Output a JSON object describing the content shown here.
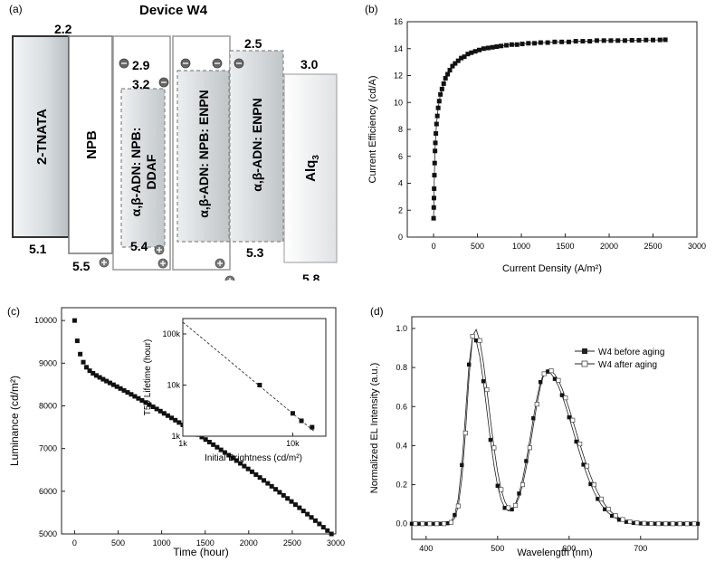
{
  "figure": {
    "a": {
      "panel_label": "(a)",
      "title": "Device W4",
      "layers": [
        {
          "name": "2-TNATA",
          "lumo": "2.2",
          "homo": "5.1"
        },
        {
          "name": "NPB",
          "lumo": "",
          "homo": "5.5"
        },
        {
          "name": "α,β-ADN: NPB: DDAF",
          "lumo": "2.9",
          "homo": "5.4",
          "lumo2": "3.2"
        },
        {
          "name": "α,β-ADN: NPB: ENPN",
          "lumo": "2.5",
          "homo": ""
        },
        {
          "name": "α,β-ADN: ENPN",
          "lumo": "",
          "homo": "5.3"
        },
        {
          "name": "Alq",
          "sub": "3",
          "lumo": "3.0",
          "homo": "5.8"
        }
      ],
      "labels": {
        "v22": "2.2",
        "v29": "2.9",
        "v32": "3.2",
        "v25": "2.5",
        "v30": "3.0",
        "v51": "5.1",
        "v55": "5.5",
        "v54": "5.4",
        "v53": "5.3",
        "v58": "5.8",
        "l_tnata": "2-TNATA",
        "l_npb": "NPB",
        "l_ddaf_1": "α,β-ADN: NPB:",
        "l_ddaf_2": "DDAF",
        "l_enpn1": "α,β-ADN: NPB: ENPN",
        "l_enpn2": "α,β-ADN: ENPN",
        "l_alq": "Alq",
        "l_alq_sub": "3"
      }
    },
    "b": {
      "panel_label": "(b)"
    },
    "c": {
      "panel_label": "(c)"
    },
    "d": {
      "panel_label": "(d)"
    }
  },
  "chart_data": [
    {
      "id": "b",
      "type": "scatter",
      "title": "",
      "xlabel": "Current Density (A/m²)",
      "ylabel": "Current Efficiency (cd/A)",
      "xlim": [
        -300,
        3000
      ],
      "ylim": [
        0,
        16
      ],
      "xticks": [
        "0",
        "500",
        "1000",
        "1500",
        "2000",
        "2500",
        "3000"
      ],
      "yticks": [
        "0",
        "2",
        "4",
        "6",
        "8",
        "10",
        "12",
        "14",
        "16"
      ],
      "series": [
        {
          "marker": "filled-square",
          "x": [
            0,
            2,
            4,
            6,
            9,
            12,
            16,
            20,
            26,
            33,
            42,
            52,
            64,
            78,
            95,
            115,
            135,
            160,
            185,
            215,
            245,
            280,
            315,
            350,
            390,
            430,
            475,
            520,
            570,
            620,
            670,
            720,
            770,
            830,
            890,
            950,
            1010,
            1080,
            1150,
            1220,
            1300,
            1380,
            1460,
            1540,
            1620,
            1700,
            1780,
            1860,
            1940,
            2020,
            2100,
            2180,
            2260,
            2340,
            2420,
            2500,
            2580,
            2640
          ],
          "y": [
            1.4,
            2.2,
            2.9,
            3.6,
            4.6,
            5.5,
            6.4,
            7.0,
            7.7,
            8.4,
            9.0,
            9.6,
            10.1,
            10.6,
            11.0,
            11.4,
            11.8,
            12.1,
            12.4,
            12.7,
            12.9,
            13.1,
            13.3,
            13.4,
            13.6,
            13.7,
            13.8,
            13.9,
            14.0,
            14.05,
            14.1,
            14.15,
            14.2,
            14.25,
            14.3,
            14.3,
            14.35,
            14.4,
            14.4,
            14.45,
            14.45,
            14.5,
            14.5,
            14.5,
            14.55,
            14.55,
            14.55,
            14.6,
            14.6,
            14.6,
            14.6,
            14.6,
            14.62,
            14.62,
            14.64,
            14.64,
            14.65,
            14.66
          ]
        }
      ]
    },
    {
      "id": "c",
      "type": "scatter",
      "title": "",
      "xlabel": "Time (hour)",
      "ylabel": "Luminance (cd/m²)",
      "xlim": [
        -150,
        3000
      ],
      "ylim": [
        5000,
        10300
      ],
      "xticks": [
        "0",
        "500",
        "1000",
        "1500",
        "2000",
        "2500",
        "3000"
      ],
      "yticks": [
        "5000",
        "6000",
        "7000",
        "8000",
        "9000",
        "10000"
      ],
      "series": [
        {
          "marker": "filled-square",
          "decay": {
            "start": 10000,
            "end": 5000,
            "t_end": 2950,
            "count": 70
          }
        }
      ],
      "inset": {
        "xlabel": "Initial Brightness (cd/m²)",
        "ylabel": "T50 Lifetime (hour)",
        "xscale": "log",
        "yscale": "log",
        "xlim": [
          1000,
          20000
        ],
        "ylim": [
          1000,
          200000
        ],
        "xticks": [
          "1k",
          "10k"
        ],
        "yticks": [
          "1k",
          "10k",
          "100k"
        ],
        "points": {
          "x": [
            5000,
            10000,
            12000,
            15000
          ],
          "y": [
            10000,
            2800,
            2000,
            1500
          ]
        },
        "fit": {
          "x": [
            1000,
            16000
          ],
          "y": [
            170000,
            1200
          ]
        }
      }
    },
    {
      "id": "d",
      "type": "line",
      "title": "",
      "xlabel": "Wavelength (nm)",
      "ylabel": "Normalized EL Intensity (a.u.)",
      "xlim": [
        380,
        780
      ],
      "ylim": [
        -0.08,
        1.06
      ],
      "xticks": [
        "400",
        "500",
        "600",
        "700"
      ],
      "yticks": [
        "0.0",
        "0.2",
        "0.4",
        "0.6",
        "0.8",
        "1.0"
      ],
      "legend_position": "top-right",
      "series": [
        {
          "name": "W4 before aging",
          "marker": "filled-square",
          "peaks": [
            {
              "center": 466,
              "height": 0.96,
              "width": 14
            },
            {
              "center": 568,
              "height": 0.78,
              "width": 28
            }
          ]
        },
        {
          "name": "W4 after aging",
          "marker": "open-square",
          "peaks": [
            {
              "center": 468,
              "height": 1.0,
              "width": 14
            },
            {
              "center": 570,
              "height": 0.79,
              "width": 28
            }
          ]
        }
      ],
      "wavelength_range": [
        380,
        780
      ],
      "step": 5
    }
  ]
}
